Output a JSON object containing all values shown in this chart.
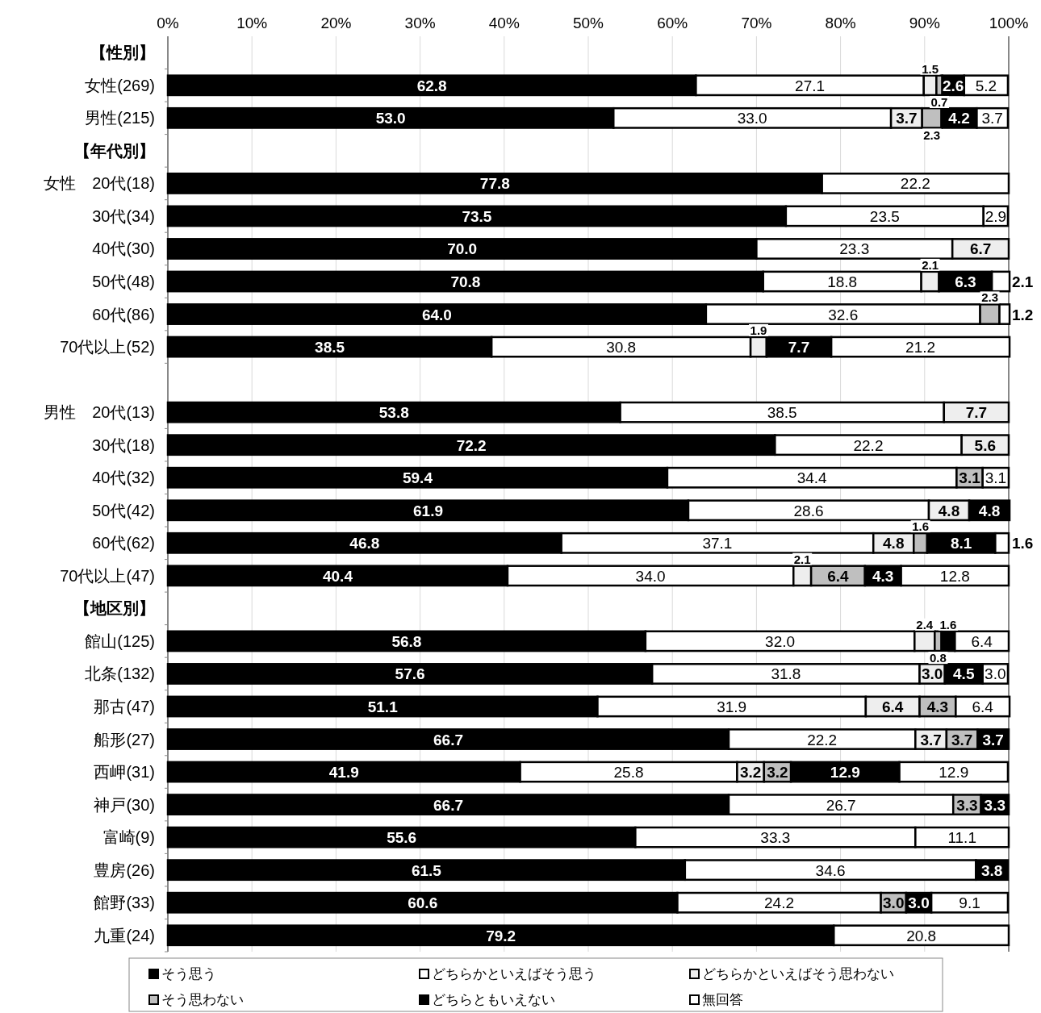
{
  "chart_data": {
    "type": "bar",
    "orientation": "horizontal",
    "stacked": true,
    "grid": "x",
    "legend": "bottom",
    "categories": [
      "【性別】",
      "女性(269)",
      "男性(215)",
      "【年代別】",
      "女性　20代(18)",
      "30代(34)",
      "40代(30)",
      "50代(48)",
      "60代(86)",
      "70代以上(52)",
      null,
      "男性　20代(13)",
      "30代(18)",
      "40代(32)",
      "50代(42)",
      "60代(62)",
      "70代以上(47)",
      "【地区別】",
      "館山(125)",
      "北条(132)",
      "那古(47)",
      "船形(27)",
      "西岬(31)",
      "神戸(30)",
      "富崎(9)",
      "豊房(26)",
      "館野(33)",
      "九重(24)"
    ],
    "xlim": [
      0,
      100
    ],
    "xticks": [
      {
        "value": 0,
        "label": "0%"
      },
      {
        "value": 10,
        "label": "10%"
      },
      {
        "value": 20,
        "label": "20%"
      },
      {
        "value": 30,
        "label": "30%"
      },
      {
        "value": 40,
        "label": "40%"
      },
      {
        "value": 50,
        "label": "50%"
      },
      {
        "value": 60,
        "label": "60%"
      },
      {
        "value": 70,
        "label": "70%"
      },
      {
        "value": 80,
        "label": "80%"
      },
      {
        "value": 90,
        "label": "90%"
      },
      {
        "value": 100,
        "label": "100%"
      }
    ],
    "series": [
      {
        "name": "そう思う",
        "color": "#000000",
        "values": [
          null,
          62.8,
          53.0,
          null,
          77.8,
          73.5,
          70.0,
          70.8,
          64.0,
          38.5,
          null,
          53.8,
          72.2,
          59.4,
          61.9,
          46.8,
          40.4,
          null,
          56.8,
          57.6,
          51.1,
          66.7,
          41.9,
          66.7,
          55.6,
          61.5,
          60.6,
          79.2
        ],
        "value_labels": [
          null,
          "62.8",
          "53.0",
          null,
          "77.8",
          "73.5",
          "70.0",
          "70.8",
          "64.0",
          "38.5",
          null,
          "53.8",
          "72.2",
          "59.4",
          "61.9",
          "46.8",
          "40.4",
          null,
          "56.8",
          "57.6",
          "51.1",
          "66.7",
          "41.9",
          "66.7",
          "55.6",
          "61.5",
          "60.6",
          "79.2"
        ]
      },
      {
        "name": "どちらかといえばそう思う",
        "color": "#ffffff",
        "values": [
          null,
          27.1,
          33.0,
          null,
          22.2,
          23.5,
          23.3,
          18.8,
          32.6,
          30.8,
          null,
          38.5,
          22.2,
          34.4,
          28.6,
          37.1,
          34.0,
          null,
          32.0,
          31.8,
          31.9,
          22.2,
          25.8,
          26.7,
          33.3,
          34.6,
          24.2,
          20.8
        ],
        "value_labels": [
          null,
          "27.1",
          "33.0",
          null,
          "22.2",
          "23.5",
          "23.3",
          "18.8",
          "32.6",
          "30.8",
          null,
          "38.5",
          "22.2",
          "34.4",
          "28.6",
          "37.1",
          "34.0",
          null,
          "32.0",
          "31.8",
          "31.9",
          "22.2",
          "25.8",
          "26.7",
          "33.3",
          "34.6",
          "24.2",
          "20.8"
        ]
      },
      {
        "name": "どちらかといえばそう思わない",
        "color": "#eeeeee",
        "values": [
          null,
          1.5,
          3.7,
          null,
          null,
          null,
          6.7,
          2.1,
          null,
          1.9,
          null,
          7.7,
          5.6,
          null,
          4.8,
          4.8,
          2.1,
          null,
          2.4,
          3.0,
          6.4,
          3.7,
          3.2,
          null,
          null,
          null,
          null,
          null
        ],
        "value_labels": [
          null,
          "1.5",
          "3.7",
          null,
          null,
          null,
          "6.7",
          "2.1",
          null,
          "1.9",
          null,
          "7.7",
          "5.6",
          null,
          "4.8",
          "4.8",
          "2.1",
          null,
          "2.4",
          "3.0",
          "6.4",
          "3.7",
          "3.2",
          null,
          null,
          null,
          null,
          null
        ]
      },
      {
        "name": "そう思わない",
        "color": "#bfbfbf",
        "values": [
          null,
          0.7,
          2.3,
          null,
          null,
          null,
          null,
          null,
          2.3,
          null,
          null,
          null,
          null,
          3.1,
          null,
          1.6,
          6.4,
          null,
          0.8,
          null,
          4.3,
          3.7,
          3.2,
          3.3,
          null,
          null,
          3.0,
          null
        ],
        "value_labels": [
          null,
          "0.7",
          "2.3",
          null,
          null,
          null,
          null,
          null,
          "2.3",
          null,
          null,
          null,
          null,
          "3.1",
          null,
          "1.6",
          "6.4",
          null,
          "0.8",
          null,
          "4.3",
          "3.7",
          "3.2",
          "3.3",
          null,
          null,
          "3.0",
          null
        ]
      },
      {
        "name": "どちらともいえない",
        "color": "#000000",
        "values": [
          null,
          2.6,
          4.2,
          null,
          null,
          null,
          null,
          6.3,
          null,
          7.7,
          null,
          null,
          null,
          null,
          4.8,
          8.1,
          4.3,
          null,
          1.6,
          4.5,
          null,
          3.7,
          12.9,
          3.3,
          null,
          3.8,
          3.0,
          null
        ],
        "value_labels": [
          null,
          "2.6",
          "4.2",
          null,
          null,
          null,
          null,
          "6.3",
          null,
          "7.7",
          null,
          null,
          null,
          null,
          "4.8",
          "8.1",
          "4.3",
          null,
          "1.6",
          "4.5",
          null,
          "3.7",
          "12.9",
          "3.3",
          null,
          "3.8",
          "3.0",
          null
        ]
      },
      {
        "name": "無回答",
        "color": "#ffffff",
        "values": [
          null,
          5.2,
          3.7,
          null,
          null,
          2.9,
          null,
          2.1,
          1.2,
          21.2,
          null,
          null,
          null,
          3.1,
          null,
          1.6,
          12.8,
          null,
          6.4,
          3.0,
          6.4,
          null,
          12.9,
          null,
          11.1,
          null,
          9.1,
          null
        ],
        "value_labels": [
          null,
          "5.2",
          "3.7",
          null,
          null,
          "2.9",
          null,
          "2.1",
          "1.2",
          "21.2",
          null,
          null,
          null,
          "3.1",
          null,
          "1.6",
          "12.8",
          null,
          "6.4",
          "3.0",
          "6.4",
          null,
          "12.9",
          null,
          "11.1",
          null,
          "9.1",
          null
        ]
      }
    ]
  }
}
